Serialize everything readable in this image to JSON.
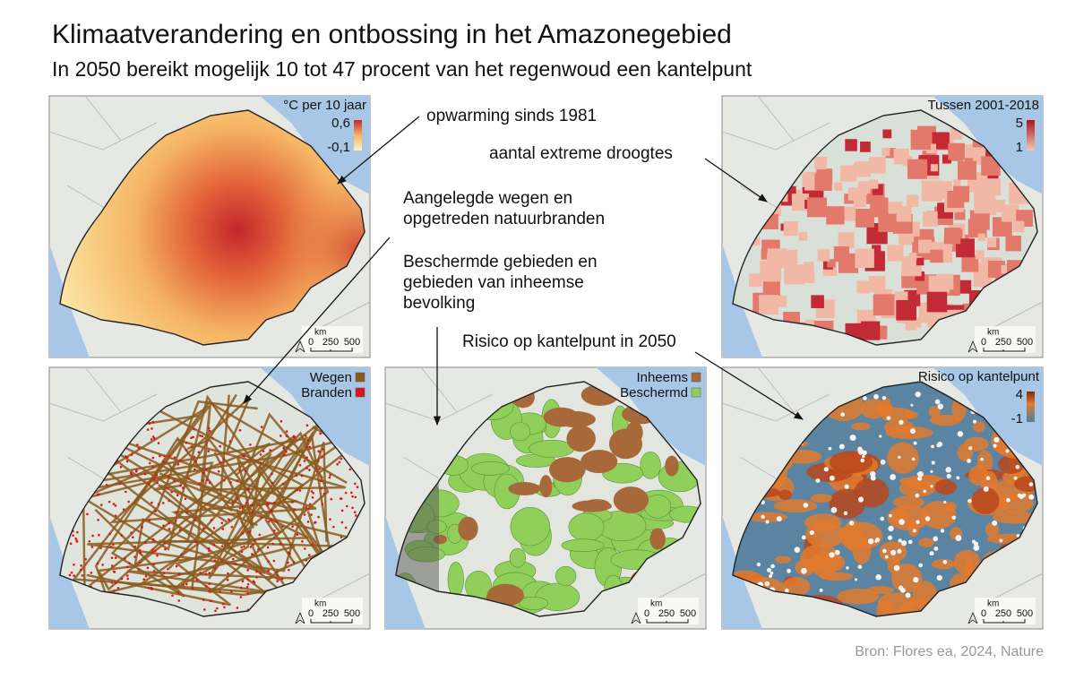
{
  "header": {
    "title": "Klimaatverandering en ontbossing in het Amazonegebied",
    "subtitle": "In 2050 bereikt mogelijk 10 tot 47 procent van het regenwoud een kantelpunt"
  },
  "panels": [
    {
      "legend_title": "°C per 10 jaar",
      "legend_max": "0,6",
      "legend_min": "-0,1"
    },
    {
      "legend_title": "Tussen 2001-2018",
      "legend_max": "5",
      "legend_min": "1"
    },
    {
      "legend_items": [
        "Wegen",
        "Branden"
      ]
    },
    {
      "legend_items": [
        "Inheems",
        "Beschermd"
      ]
    },
    {
      "legend_title": "Risico op kantelpunt",
      "legend_max": "4",
      "legend_min": "-1"
    }
  ],
  "scale_bar": {
    "unit": "km",
    "labels": [
      "0",
      "250",
      "500"
    ]
  },
  "annotations": [
    [
      "opwarming sinds 1981"
    ],
    [
      "aantal extreme droogtes"
    ],
    [
      "Aangelegde wegen en",
      "opgetreden natuurbranden"
    ],
    [
      "Beschermde gebieden en",
      "gebieden van inheemse",
      "bevolking"
    ],
    [
      "Risico op kantelpunt in 2050"
    ]
  ],
  "source": "Bron: Flores ea, 2024, Nature"
}
